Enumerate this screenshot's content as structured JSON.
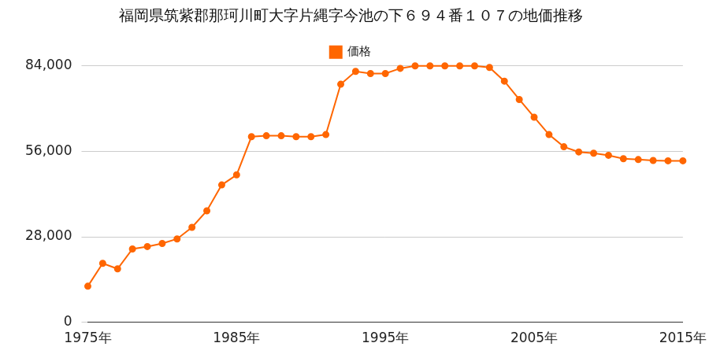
{
  "chart_data": {
    "type": "line",
    "title": "福岡県筑紫郡那珂川町大字片縄字今池の下６９４番１０７の地価推移",
    "categories": [
      "1975年",
      null,
      null,
      null,
      null,
      null,
      null,
      null,
      null,
      null,
      "1985年",
      null,
      null,
      null,
      null,
      null,
      null,
      null,
      null,
      null,
      "1995年",
      null,
      null,
      null,
      null,
      null,
      null,
      null,
      null,
      null,
      "2005年",
      null,
      null,
      null,
      null,
      null,
      null,
      null,
      null,
      null,
      "2015年"
    ],
    "series": [
      {
        "name": "価格",
        "color": "#ff6600",
        "marker": "circle",
        "line_style": "solid",
        "values": [
          11800,
          19300,
          17500,
          24000,
          24800,
          25800,
          27300,
          31100,
          36500,
          45000,
          48300,
          60800,
          61100,
          61100,
          60800,
          60800,
          61500,
          78000,
          82200,
          81500,
          81500,
          83200,
          84000,
          84000,
          84000,
          84000,
          84000,
          83500,
          79000,
          73000,
          67200,
          61500,
          57500,
          55800,
          55400,
          54700,
          53600,
          53300,
          53000,
          52900,
          52900
        ]
      }
    ],
    "ylim": [
      0,
      84000
    ],
    "yticks": [
      0,
      {
        "value": 28000,
        "label": "28,000"
      },
      {
        "value": 56000,
        "label": "56,000"
      },
      {
        "value": 84000,
        "label": "84,000"
      }
    ],
    "grid": true,
    "legend": "top"
  }
}
